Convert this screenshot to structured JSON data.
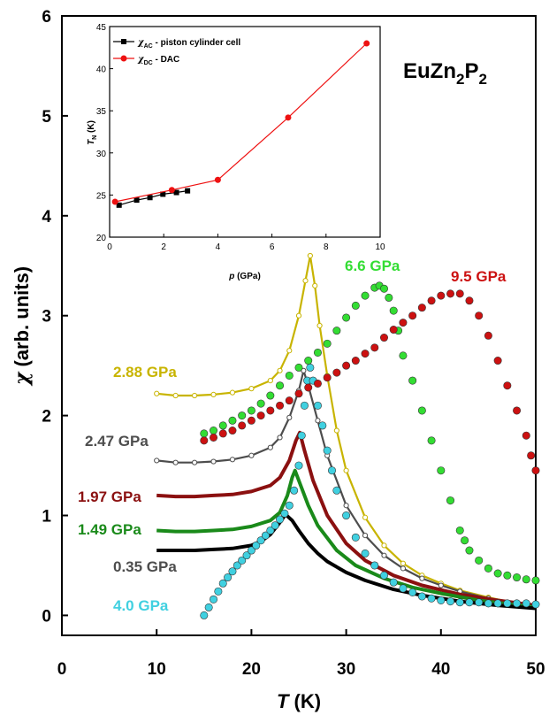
{
  "chart_data": [
    {
      "type": "scatter",
      "title": "EuZn2P2",
      "compound": {
        "base": "EuZn",
        "sub1": "2",
        "mid": "P",
        "sub2": "2"
      },
      "xlabel": {
        "sym": "T",
        "unit": " (K)"
      },
      "ylabel": {
        "sym": "χ",
        "unit": " (arb. units)"
      },
      "xlim": [
        0,
        50
      ],
      "ylim": [
        -0.2,
        6
      ],
      "xticks": [
        "0",
        "10",
        "20",
        "30",
        "40",
        "50"
      ],
      "yticks": [
        "0",
        "1",
        "2",
        "3",
        "4",
        "5",
        "6"
      ],
      "grid": false,
      "series": [
        {
          "name": "2.88 GPa",
          "color": "#c8b400",
          "marker": "open-circle-line",
          "points": [
            [
              10,
              2.22
            ],
            [
              12,
              2.2
            ],
            [
              14,
              2.2
            ],
            [
              16,
              2.21
            ],
            [
              18,
              2.23
            ],
            [
              20,
              2.27
            ],
            [
              22,
              2.35
            ],
            [
              23,
              2.45
            ],
            [
              24,
              2.65
            ],
            [
              25,
              3.0
            ],
            [
              25.7,
              3.35
            ],
            [
              26.2,
              3.6
            ],
            [
              26.7,
              3.3
            ],
            [
              27.2,
              2.9
            ],
            [
              28,
              2.4
            ],
            [
              29,
              1.85
            ],
            [
              30,
              1.45
            ],
            [
              32,
              0.98
            ],
            [
              34,
              0.7
            ],
            [
              36,
              0.52
            ],
            [
              38,
              0.4
            ],
            [
              40,
              0.32
            ],
            [
              42,
              0.25
            ],
            [
              45,
              0.18
            ],
            [
              48,
              0.12
            ],
            [
              50,
              0.1
            ]
          ]
        },
        {
          "name": "2.47 GPa",
          "color": "#4d4d4d",
          "marker": "open-circle-line",
          "points": [
            [
              10,
              1.55
            ],
            [
              12,
              1.53
            ],
            [
              14,
              1.53
            ],
            [
              16,
              1.54
            ],
            [
              18,
              1.56
            ],
            [
              20,
              1.6
            ],
            [
              22,
              1.68
            ],
            [
              23,
              1.78
            ],
            [
              24,
              1.98
            ],
            [
              25,
              2.25
            ],
            [
              25.5,
              2.45
            ],
            [
              26,
              2.3
            ],
            [
              27,
              1.95
            ],
            [
              28,
              1.6
            ],
            [
              30,
              1.1
            ],
            [
              32,
              0.8
            ],
            [
              34,
              0.6
            ],
            [
              36,
              0.47
            ],
            [
              38,
              0.37
            ],
            [
              40,
              0.3
            ],
            [
              42,
              0.24
            ],
            [
              45,
              0.17
            ],
            [
              48,
              0.12
            ],
            [
              50,
              0.1
            ]
          ]
        },
        {
          "name": "1.97 GPa",
          "color": "#8b1010",
          "marker": "line",
          "points": [
            [
              10,
              1.2
            ],
            [
              12,
              1.19
            ],
            [
              14,
              1.19
            ],
            [
              16,
              1.2
            ],
            [
              18,
              1.21
            ],
            [
              20,
              1.24
            ],
            [
              22,
              1.3
            ],
            [
              23,
              1.38
            ],
            [
              24,
              1.55
            ],
            [
              24.7,
              1.75
            ],
            [
              25.1,
              1.83
            ],
            [
              25.6,
              1.65
            ],
            [
              26.5,
              1.35
            ],
            [
              28,
              1.0
            ],
            [
              30,
              0.72
            ],
            [
              32,
              0.55
            ],
            [
              35,
              0.4
            ],
            [
              38,
              0.3
            ],
            [
              42,
              0.21
            ],
            [
              46,
              0.15
            ],
            [
              50,
              0.1
            ]
          ]
        },
        {
          "name": "1.49 GPa",
          "color": "#1a8a1a",
          "marker": "line",
          "points": [
            [
              10,
              0.85
            ],
            [
              12,
              0.84
            ],
            [
              14,
              0.84
            ],
            [
              16,
              0.85
            ],
            [
              18,
              0.86
            ],
            [
              20,
              0.89
            ],
            [
              22,
              0.95
            ],
            [
              23,
              1.03
            ],
            [
              23.8,
              1.2
            ],
            [
              24.3,
              1.38
            ],
            [
              24.6,
              1.45
            ],
            [
              25.2,
              1.3
            ],
            [
              26,
              1.1
            ],
            [
              27,
              0.9
            ],
            [
              29,
              0.65
            ],
            [
              31,
              0.5
            ],
            [
              34,
              0.37
            ],
            [
              37,
              0.28
            ],
            [
              40,
              0.22
            ],
            [
              44,
              0.15
            ],
            [
              50,
              0.08
            ]
          ]
        },
        {
          "name": "0.35 GPa",
          "color": "#000000",
          "marker": "line",
          "points": [
            [
              10,
              0.65
            ],
            [
              12,
              0.65
            ],
            [
              14,
              0.65
            ],
            [
              16,
              0.66
            ],
            [
              18,
              0.67
            ],
            [
              20,
              0.7
            ],
            [
              21,
              0.74
            ],
            [
              22,
              0.81
            ],
            [
              23,
              0.93
            ],
            [
              23.6,
              1.01
            ],
            [
              24.3,
              0.95
            ],
            [
              25,
              0.85
            ],
            [
              26,
              0.72
            ],
            [
              27,
              0.62
            ],
            [
              28,
              0.54
            ],
            [
              30,
              0.43
            ],
            [
              32,
              0.35
            ],
            [
              35,
              0.26
            ],
            [
              38,
              0.2
            ],
            [
              42,
              0.14
            ],
            [
              46,
              0.1
            ],
            [
              50,
              0.07
            ]
          ]
        },
        {
          "name": "4.0 GPa",
          "color": "#40d0e0",
          "marker": "filled-circle",
          "points": [
            [
              15,
              0.0
            ],
            [
              15.5,
              0.08
            ],
            [
              16,
              0.16
            ],
            [
              16.5,
              0.24
            ],
            [
              17,
              0.32
            ],
            [
              17.5,
              0.38
            ],
            [
              18,
              0.44
            ],
            [
              18.5,
              0.5
            ],
            [
              19,
              0.55
            ],
            [
              19.5,
              0.6
            ],
            [
              20,
              0.65
            ],
            [
              20.5,
              0.7
            ],
            [
              21,
              0.75
            ],
            [
              21.5,
              0.8
            ],
            [
              22,
              0.85
            ],
            [
              22.5,
              0.9
            ],
            [
              23,
              0.96
            ],
            [
              23.5,
              1.02
            ],
            [
              24,
              1.1
            ],
            [
              24.5,
              1.25
            ],
            [
              25,
              1.5
            ],
            [
              25.3,
              1.8
            ],
            [
              25.6,
              2.1
            ],
            [
              25.9,
              2.35
            ],
            [
              26.2,
              2.48
            ],
            [
              26.5,
              2.35
            ],
            [
              27,
              2.1
            ],
            [
              27.5,
              1.9
            ],
            [
              28,
              1.65
            ],
            [
              28.5,
              1.45
            ],
            [
              29,
              1.25
            ],
            [
              30,
              1.0
            ],
            [
              31,
              0.78
            ],
            [
              32,
              0.62
            ],
            [
              33,
              0.5
            ],
            [
              34,
              0.4
            ],
            [
              35,
              0.33
            ],
            [
              36,
              0.27
            ],
            [
              37,
              0.23
            ],
            [
              38,
              0.19
            ],
            [
              39,
              0.17
            ],
            [
              40,
              0.15
            ],
            [
              41,
              0.14
            ],
            [
              42,
              0.13
            ],
            [
              43,
              0.13
            ],
            [
              44,
              0.13
            ],
            [
              45,
              0.12
            ],
            [
              46,
              0.12
            ],
            [
              47,
              0.12
            ],
            [
              48,
              0.12
            ],
            [
              49,
              0.12
            ],
            [
              50,
              0.11
            ]
          ]
        },
        {
          "name": "6.6 GPa",
          "color": "#33dd33",
          "marker": "filled-circle",
          "points": [
            [
              15,
              1.82
            ],
            [
              16,
              1.85
            ],
            [
              17,
              1.9
            ],
            [
              18,
              1.95
            ],
            [
              19,
              2.0
            ],
            [
              20,
              2.05
            ],
            [
              21,
              2.12
            ],
            [
              22,
              2.2
            ],
            [
              23,
              2.3
            ],
            [
              24,
              2.4
            ],
            [
              25,
              2.48
            ],
            [
              26,
              2.55
            ],
            [
              27,
              2.63
            ],
            [
              28,
              2.72
            ],
            [
              29,
              2.85
            ],
            [
              30,
              2.98
            ],
            [
              31,
              3.1
            ],
            [
              32,
              3.2
            ],
            [
              33,
              3.28
            ],
            [
              33.5,
              3.3
            ],
            [
              34,
              3.27
            ],
            [
              34.5,
              3.18
            ],
            [
              35,
              3.05
            ],
            [
              35.5,
              2.85
            ],
            [
              36,
              2.6
            ],
            [
              37,
              2.35
            ],
            [
              38,
              2.05
            ],
            [
              39,
              1.75
            ],
            [
              40,
              1.45
            ],
            [
              41,
              1.15
            ],
            [
              42,
              0.85
            ],
            [
              42.5,
              0.75
            ],
            [
              43,
              0.65
            ],
            [
              44,
              0.55
            ],
            [
              45,
              0.47
            ],
            [
              46,
              0.42
            ],
            [
              47,
              0.4
            ],
            [
              48,
              0.38
            ],
            [
              49,
              0.36
            ],
            [
              50,
              0.35
            ]
          ]
        },
        {
          "name": "9.5 GPa",
          "color": "#cc1111",
          "marker": "filled-circle",
          "points": [
            [
              15,
              1.75
            ],
            [
              16,
              1.78
            ],
            [
              17,
              1.82
            ],
            [
              18,
              1.85
            ],
            [
              19,
              1.9
            ],
            [
              20,
              1.95
            ],
            [
              21,
              2.0
            ],
            [
              22,
              2.05
            ],
            [
              23,
              2.1
            ],
            [
              24,
              2.15
            ],
            [
              25,
              2.22
            ],
            [
              26,
              2.28
            ],
            [
              27,
              2.32
            ],
            [
              28,
              2.38
            ],
            [
              29,
              2.43
            ],
            [
              30,
              2.5
            ],
            [
              31,
              2.55
            ],
            [
              32,
              2.62
            ],
            [
              33,
              2.68
            ],
            [
              34,
              2.78
            ],
            [
              35,
              2.86
            ],
            [
              36,
              2.93
            ],
            [
              37,
              3.0
            ],
            [
              38,
              3.08
            ],
            [
              39,
              3.15
            ],
            [
              40,
              3.2
            ],
            [
              41,
              3.22
            ],
            [
              42,
              3.22
            ],
            [
              43,
              3.15
            ],
            [
              44,
              3.0
            ],
            [
              45,
              2.8
            ],
            [
              46,
              2.55
            ],
            [
              47,
              2.3
            ],
            [
              48,
              2.05
            ],
            [
              49,
              1.8
            ],
            [
              49.5,
              1.6
            ],
            [
              50,
              1.45
            ]
          ]
        }
      ]
    },
    {
      "type": "line",
      "xlabel": {
        "sym": "p",
        "unit": " (GPa)"
      },
      "ylabel": {
        "sym": "T",
        "sub": "N",
        "unit": " (K)"
      },
      "xlim": [
        0,
        10
      ],
      "ylim": [
        20,
        45
      ],
      "xticks": [
        "0",
        "2",
        "4",
        "6",
        "8",
        "10"
      ],
      "yticks": [
        "20",
        "25",
        "30",
        "35",
        "40",
        "45"
      ],
      "legend": "top-left",
      "series": [
        {
          "label_sym": "χ",
          "label_sub": "AC",
          "label_rest": " - piston cylinder cell",
          "color": "#000000",
          "marker": "square",
          "x": [
            0.35,
            1.0,
            1.49,
            1.97,
            2.47,
            2.88
          ],
          "y": [
            23.8,
            24.4,
            24.7,
            25.1,
            25.3,
            25.5
          ]
        },
        {
          "label_sym": "χ",
          "label_sub": "DC",
          "label_rest": " - DAC",
          "color": "#ee1111",
          "marker": "circle",
          "x": [
            0.2,
            2.3,
            4.0,
            6.6,
            9.5
          ],
          "y": [
            24.2,
            25.6,
            26.8,
            34.2,
            43.0
          ]
        }
      ]
    }
  ]
}
